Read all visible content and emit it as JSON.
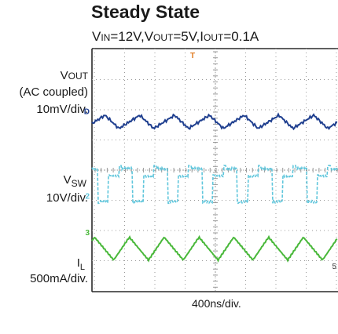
{
  "chart_data": {
    "type": "line",
    "title": "Steady State",
    "subtitle": "VIN=12V,VOUT=5V,IOUT=0.1A",
    "xlabel": "400ns/div.",
    "grid": true,
    "channels": [
      {
        "id": "ch1",
        "marker": "D",
        "name": "VOUT",
        "note": "(AC coupled)",
        "scale": "10mV/div.",
        "color": "#1f3f8f",
        "shape": "triangle ripple",
        "period_div": 1.15,
        "amplitude_div": 0.22,
        "center_div": -1.6
      },
      {
        "id": "ch2",
        "marker": "2",
        "name": "VSW",
        "scale": "10V/div.",
        "color": "#5fc6dc",
        "shape": "switching pulse train",
        "period_div": 1.15,
        "high_div": 0.25,
        "low_div": -0.9,
        "center_div": 0.2
      },
      {
        "id": "ch3",
        "marker": "3",
        "name": "IL",
        "scale": "500mA/div.",
        "color": "#49b83a",
        "shape": "triangle current",
        "period_div": 1.15,
        "amplitude_div": 0.38,
        "center_div": 2.6
      }
    ],
    "trigger_marker": "T",
    "edge_marker": "5"
  },
  "labels": {
    "vout_main": "V",
    "vout_sub": "OUT",
    "vout_note": "(AC coupled)",
    "vout_scale": "10mV/div.",
    "vsw_main": "V",
    "vsw_sub": "SW",
    "vsw_scale": "10V/div.",
    "il_main": "I",
    "il_sub": "L",
    "il_scale": "500mA/div."
  },
  "colors": {
    "grid": "#9a9a9a",
    "frame": "#2a2a2a",
    "trigger": "#e07a1f"
  }
}
